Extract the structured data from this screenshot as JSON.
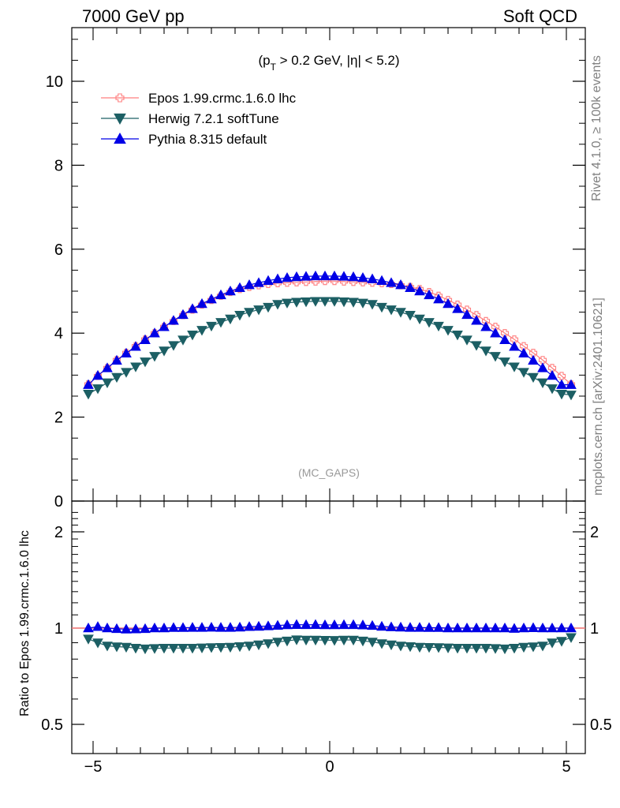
{
  "header": {
    "left": "7000 GeV pp",
    "right": "Soft QCD"
  },
  "side_labels": {
    "rivet": "Rivet 4.1.0, ≥ 100k events",
    "mcplots": "mcplots.cern.ch [arXiv:2401.10621]"
  },
  "cut_label": "(p_T > 0.2 GeV, |η| < 5.2)",
  "watermark": "(MC_GAPS)",
  "colors": {
    "epos": "#ff7f7f",
    "herwig": "#1c5f64",
    "pythia": "#0000e6"
  },
  "chart_data": [
    {
      "type": "line",
      "title": "",
      "xlabel": "",
      "ylabel": "",
      "xlim": [
        -5.3,
        5.3
      ],
      "ylim": [
        0,
        11.2
      ],
      "x_ticks": [
        -5,
        0,
        5
      ],
      "x_tick_labels": [
        "−5",
        "0",
        "5"
      ],
      "y_ticks": [
        0,
        2,
        4,
        6,
        8,
        10
      ],
      "y_tick_labels": [
        "0",
        "2",
        "4",
        "6",
        "8",
        "10"
      ],
      "legend": [
        {
          "name": "Epos 1.99.crmc.1.6.0 lhc",
          "marker": "open-cross",
          "key": "epos"
        },
        {
          "name": "Herwig 7.2.1 softTune",
          "marker": "triangle-down",
          "key": "herwig"
        },
        {
          "name": "Pythia 8.315 default",
          "marker": "triangle-up",
          "key": "pythia"
        }
      ],
      "x": [
        -5.1,
        -4.9,
        -4.7,
        -4.5,
        -4.3,
        -4.1,
        -3.9,
        -3.7,
        -3.5,
        -3.3,
        -3.1,
        -2.9,
        -2.7,
        -2.5,
        -2.3,
        -2.1,
        -1.9,
        -1.7,
        -1.5,
        -1.3,
        -1.1,
        -0.9,
        -0.7,
        -0.5,
        -0.3,
        -0.1,
        0.1,
        0.3,
        0.5,
        0.7,
        0.9,
        1.1,
        1.3,
        1.5,
        1.7,
        1.9,
        2.1,
        2.3,
        2.5,
        2.7,
        2.9,
        3.1,
        3.3,
        3.5,
        3.7,
        3.9,
        4.1,
        4.3,
        4.5,
        4.7,
        4.9,
        5.1
      ],
      "series": [
        {
          "name": "Epos 1.99.crmc.1.6.0 lhc",
          "key": "epos",
          "values": [
            2.78,
            2.98,
            3.17,
            3.36,
            3.53,
            3.69,
            3.85,
            4.0,
            4.15,
            4.29,
            4.43,
            4.56,
            4.68,
            4.79,
            4.89,
            4.98,
            5.05,
            5.1,
            5.14,
            5.17,
            5.19,
            5.2,
            5.21,
            5.22,
            5.23,
            5.24,
            5.24,
            5.23,
            5.22,
            5.21,
            5.2,
            5.19,
            5.17,
            5.14,
            5.1,
            5.05,
            4.98,
            4.89,
            4.79,
            4.68,
            4.56,
            4.43,
            4.29,
            4.15,
            4.0,
            3.85,
            3.69,
            3.53,
            3.36,
            3.17,
            2.98,
            2.78
          ]
        },
        {
          "name": "Herwig 7.2.1 softTune",
          "key": "herwig",
          "values": [
            2.55,
            2.68,
            2.82,
            2.95,
            3.07,
            3.2,
            3.32,
            3.45,
            3.58,
            3.71,
            3.84,
            3.96,
            4.07,
            4.17,
            4.26,
            4.34,
            4.43,
            4.5,
            4.56,
            4.62,
            4.69,
            4.72,
            4.74,
            4.75,
            4.76,
            4.76,
            4.76,
            4.75,
            4.74,
            4.72,
            4.69,
            4.62,
            4.56,
            4.5,
            4.43,
            4.34,
            4.26,
            4.17,
            4.07,
            3.96,
            3.84,
            3.71,
            3.58,
            3.45,
            3.32,
            3.2,
            3.07,
            2.95,
            2.82,
            2.68,
            2.55,
            2.53
          ]
        },
        {
          "name": "Pythia 8.315 default",
          "key": "pythia",
          "values": [
            2.77,
            2.99,
            3.17,
            3.35,
            3.52,
            3.68,
            3.84,
            4.0,
            4.15,
            4.3,
            4.44,
            4.58,
            4.7,
            4.81,
            4.91,
            5.0,
            5.08,
            5.15,
            5.2,
            5.25,
            5.29,
            5.32,
            5.34,
            5.35,
            5.36,
            5.36,
            5.36,
            5.35,
            5.34,
            5.32,
            5.29,
            5.25,
            5.2,
            5.15,
            5.08,
            5.0,
            4.91,
            4.81,
            4.7,
            4.58,
            4.44,
            4.3,
            4.15,
            4.0,
            3.84,
            3.68,
            3.52,
            3.35,
            3.17,
            2.99,
            2.77,
            2.77
          ]
        }
      ]
    },
    {
      "type": "line",
      "title": "",
      "xlabel": "",
      "ylabel": "Ratio to Epos 1.99.crmc.1.6.0 lhc",
      "xlim": [
        -5.3,
        5.3
      ],
      "ylim": [
        0.4,
        2.35
      ],
      "yscale": "log",
      "y_ticks": [
        0.5,
        1,
        2
      ],
      "y_tick_labels": [
        "0.5",
        "1",
        "2"
      ],
      "reference_line": 1,
      "x": [
        -5.1,
        -4.9,
        -4.7,
        -4.5,
        -4.3,
        -4.1,
        -3.9,
        -3.7,
        -3.5,
        -3.3,
        -3.1,
        -2.9,
        -2.7,
        -2.5,
        -2.3,
        -2.1,
        -1.9,
        -1.7,
        -1.5,
        -1.3,
        -1.1,
        -0.9,
        -0.7,
        -0.5,
        -0.3,
        -0.1,
        0.1,
        0.3,
        0.5,
        0.7,
        0.9,
        1.1,
        1.3,
        1.5,
        1.7,
        1.9,
        2.1,
        2.3,
        2.5,
        2.7,
        2.9,
        3.1,
        3.3,
        3.5,
        3.7,
        3.9,
        4.1,
        4.3,
        4.5,
        4.7,
        4.9,
        5.1
      ],
      "series": [
        {
          "name": "Herwig 7.2.1 softTune",
          "key": "herwig",
          "values": [
            0.925,
            0.9,
            0.88,
            0.875,
            0.872,
            0.866,
            0.862,
            0.864,
            0.866,
            0.866,
            0.866,
            0.866,
            0.868,
            0.87,
            0.871,
            0.872,
            0.876,
            0.88,
            0.887,
            0.895,
            0.905,
            0.912,
            0.92,
            0.918,
            0.918,
            0.917,
            0.916,
            0.918,
            0.918,
            0.912,
            0.905,
            0.895,
            0.887,
            0.88,
            0.876,
            0.872,
            0.871,
            0.87,
            0.868,
            0.866,
            0.866,
            0.866,
            0.866,
            0.864,
            0.862,
            0.866,
            0.872,
            0.875,
            0.88,
            0.9,
            0.91,
            0.935
          ]
        },
        {
          "name": "Pythia 8.315 default",
          "key": "pythia",
          "values": [
            1.0,
            1.01,
            1.0,
            0.995,
            0.992,
            0.993,
            0.995,
            1.0,
            1.0,
            1.003,
            1.003,
            1.004,
            1.004,
            1.005,
            1.004,
            1.004,
            1.006,
            1.01,
            1.012,
            1.015,
            1.019,
            1.023,
            1.025,
            1.024,
            1.025,
            1.023,
            1.023,
            1.024,
            1.024,
            1.022,
            1.018,
            1.012,
            1.008,
            1.006,
            1.004,
            1.004,
            1.003,
            1.003,
            1.0,
            1.0,
            1.0,
            1.0,
            1.0,
            1.0,
            1.0,
            0.997,
            1.0,
            1.002,
            1.0,
            1.0,
            1.0,
            1.0
          ]
        }
      ]
    }
  ]
}
